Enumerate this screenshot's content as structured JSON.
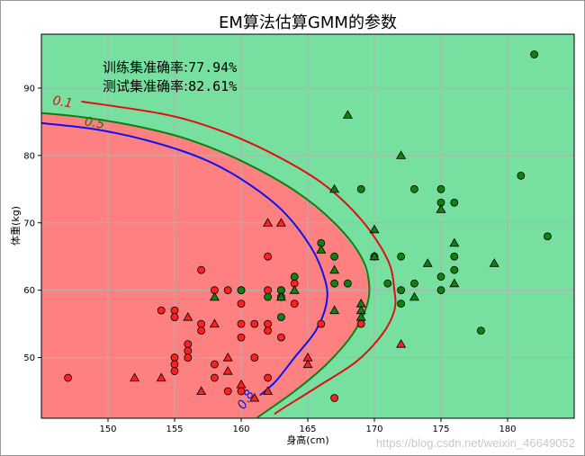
{
  "chart_data": {
    "type": "scatter",
    "title": "EM算法估算GMM的参数",
    "xlabel": "身高(cm)",
    "ylabel": "体重(kg)",
    "xlim": [
      145,
      185
    ],
    "ylim": [
      41,
      98
    ],
    "xticks": [
      150,
      155,
      160,
      165,
      170,
      175,
      180
    ],
    "yticks": [
      50,
      60,
      70,
      80,
      90
    ],
    "grid": true,
    "annotations": [
      {
        "label": "训练集准确率:",
        "value": "77.94%"
      },
      {
        "label": "测试集准确率:",
        "value": "82.61%"
      }
    ],
    "regions": [
      {
        "name": "class-0-region",
        "color": "#ff8080"
      },
      {
        "name": "class-1-region",
        "color": "#77e0a0"
      }
    ],
    "contours": [
      {
        "level": "0.1",
        "color": "#e01010",
        "points": [
          [
            148,
            88
          ],
          [
            154,
            86.2
          ],
          [
            158,
            84
          ],
          [
            162,
            80.6
          ],
          [
            166,
            76
          ],
          [
            169,
            70.5
          ],
          [
            171,
            64.5
          ],
          [
            171.5,
            60
          ],
          [
            171.5,
            57
          ],
          [
            170.6,
            53.5
          ],
          [
            168.7,
            49.5
          ],
          [
            166,
            46
          ],
          [
            163,
            42.3
          ],
          [
            162.5,
            41.6
          ]
        ]
      },
      {
        "level": "0.5",
        "color": "#108010",
        "points": [
          [
            145,
            86.3
          ],
          [
            148,
            85.7
          ],
          [
            152,
            84.4
          ],
          [
            156,
            82.4
          ],
          [
            160,
            79.2
          ],
          [
            164,
            74.8
          ],
          [
            167,
            70
          ],
          [
            169,
            65
          ],
          [
            169.6,
            61
          ],
          [
            169.4,
            57.5
          ],
          [
            168.3,
            53.3
          ],
          [
            166.4,
            49
          ],
          [
            164,
            45
          ],
          [
            161.2,
            41.1
          ]
        ]
      },
      {
        "level": "0.8",
        "color": "#1010f0",
        "points": [
          [
            145,
            84.8
          ],
          [
            149,
            83.9
          ],
          [
            153,
            82.2
          ],
          [
            157,
            79.6
          ],
          [
            160,
            76.5
          ],
          [
            163,
            72
          ],
          [
            165.2,
            66.5
          ],
          [
            166.3,
            61.5
          ],
          [
            166.4,
            58
          ],
          [
            165.6,
            54
          ],
          [
            164,
            50
          ],
          [
            162.6,
            46.5
          ],
          [
            161.4,
            44.4
          ]
        ]
      }
    ],
    "contour_labels": [
      {
        "text": "0.1",
        "x": 145.8,
        "y": 87.6,
        "color": "#e01010",
        "angle": 10
      },
      {
        "text": "0.5",
        "x": 148.2,
        "y": 84.5,
        "color": "#108010",
        "angle": 10
      },
      {
        "text": "0.8",
        "x": 160.2,
        "y": 42.2,
        "color": "#1010f0",
        "angle": -58
      }
    ],
    "series": [
      {
        "name": "class-0-train",
        "marker": "circle",
        "color": "#ff2020",
        "points": [
          [
            147,
            47
          ],
          [
            154,
            57
          ],
          [
            155,
            57
          ],
          [
            155,
            56
          ],
          [
            155,
            50
          ],
          [
            155,
            49
          ],
          [
            155,
            48
          ],
          [
            156,
            52
          ],
          [
            156,
            51
          ],
          [
            156,
            50
          ],
          [
            157,
            63
          ],
          [
            157,
            55
          ],
          [
            157,
            54
          ],
          [
            158,
            60
          ],
          [
            158,
            49
          ],
          [
            158,
            47
          ],
          [
            159,
            60
          ],
          [
            159,
            45
          ],
          [
            160,
            60
          ],
          [
            160,
            58
          ],
          [
            160,
            55
          ],
          [
            160,
            53
          ],
          [
            160,
            45
          ],
          [
            161,
            55
          ],
          [
            161,
            50
          ],
          [
            162,
            65
          ],
          [
            162,
            60
          ],
          [
            162,
            55
          ],
          [
            162,
            54
          ],
          [
            162,
            47
          ],
          [
            163,
            60
          ],
          [
            163,
            53
          ],
          [
            164,
            61
          ],
          [
            164,
            58
          ],
          [
            166,
            55
          ],
          [
            167,
            44
          ],
          [
            169,
            55
          ]
        ]
      },
      {
        "name": "class-1-train",
        "marker": "circle",
        "color": "#108010",
        "points": [
          [
            160,
            60
          ],
          [
            162,
            59
          ],
          [
            163,
            56
          ],
          [
            163,
            60
          ],
          [
            163,
            59
          ],
          [
            164,
            62
          ],
          [
            166,
            67
          ],
          [
            167,
            65
          ],
          [
            167,
            61
          ],
          [
            168,
            61
          ],
          [
            169,
            75
          ],
          [
            170,
            65
          ],
          [
            171,
            61
          ],
          [
            172,
            65
          ],
          [
            172,
            60
          ],
          [
            172,
            58
          ],
          [
            173,
            75
          ],
          [
            173,
            61
          ],
          [
            175,
            75
          ],
          [
            175,
            73
          ],
          [
            175,
            62
          ],
          [
            175,
            60
          ],
          [
            176,
            73
          ],
          [
            176,
            65
          ],
          [
            176,
            63
          ],
          [
            178,
            54
          ],
          [
            181,
            77
          ],
          [
            182,
            95
          ],
          [
            183,
            68
          ]
        ]
      },
      {
        "name": "class-0-test",
        "marker": "triangle",
        "color": "#ff2020",
        "points": [
          [
            152,
            47
          ],
          [
            154,
            47
          ],
          [
            156,
            56
          ],
          [
            157,
            45
          ],
          [
            158,
            55
          ],
          [
            159,
            50
          ],
          [
            159,
            48
          ],
          [
            160,
            46
          ],
          [
            161,
            44
          ],
          [
            162,
            70
          ],
          [
            162,
            45
          ],
          [
            163,
            70
          ],
          [
            165,
            50
          ],
          [
            165,
            49
          ],
          [
            172,
            52
          ]
        ]
      },
      {
        "name": "class-1-test",
        "marker": "triangle",
        "color": "#108010",
        "points": [
          [
            158,
            59
          ],
          [
            163,
            59
          ],
          [
            164,
            60
          ],
          [
            166,
            66
          ],
          [
            167,
            75
          ],
          [
            167,
            63
          ],
          [
            167,
            57
          ],
          [
            168,
            86
          ],
          [
            169,
            58
          ],
          [
            169,
            57
          ],
          [
            169,
            56
          ],
          [
            170,
            69
          ],
          [
            170,
            65
          ],
          [
            172,
            80
          ],
          [
            173,
            59
          ],
          [
            174,
            64
          ],
          [
            175,
            72
          ],
          [
            176,
            67
          ],
          [
            176,
            61
          ],
          [
            179,
            64
          ]
        ]
      }
    ]
  }
}
